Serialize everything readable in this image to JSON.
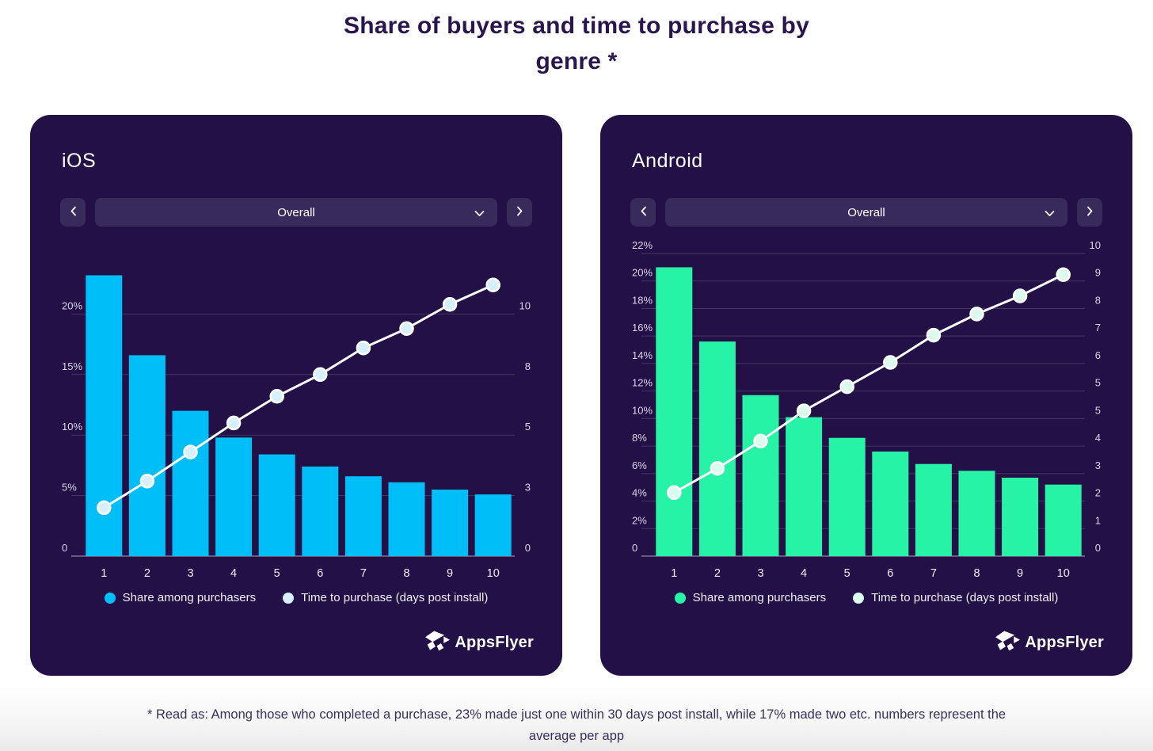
{
  "page": {
    "title_line1": "Share of buyers and time to purchase by",
    "title_line2": "genre *",
    "footer_line1": "* Read as: Among those who completed a purchase, 23% made just one within 30 days post install, while 17% made two etc. numbers represent the",
    "footer_line2": "average per app"
  },
  "colors": {
    "page_background": "#FFFFFF",
    "title_text": "#2A164F",
    "card_background": "#221046",
    "control_background": "#392A5C",
    "ios_bar": "#00BEF7",
    "ios_line_dot": "#D6F0FF",
    "android_bar": "#26F3A6",
    "android_line_dot": "#DCFBEF",
    "line_stroke": "#FFFFFF",
    "tick_text": "#D9D5EA",
    "footer_text": "#39305B"
  },
  "cards": [
    {
      "title": "iOS",
      "prev_icon": "chevron-left-icon",
      "next_icon": "chevron-right-icon",
      "dropdown_value": "Overall",
      "logo_text": "AppsFlyer"
    },
    {
      "title": "Android",
      "prev_icon": "chevron-left-icon",
      "next_icon": "chevron-right-icon",
      "dropdown_value": "Overall",
      "logo_text": "AppsFlyer"
    }
  ],
  "chart_data": [
    {
      "type": "bar+line",
      "platform": "iOS",
      "categories": [
        "1",
        "2",
        "3",
        "4",
        "5",
        "6",
        "7",
        "8",
        "9",
        "10"
      ],
      "series": [
        {
          "name": "Share among purchasers",
          "type": "bar",
          "unit": "%",
          "values": [
            23.2,
            16.6,
            12.0,
            9.8,
            8.4,
            7.4,
            6.6,
            6.1,
            5.5,
            5.1
          ]
        },
        {
          "name": "Time to purchase (days post install)",
          "type": "line",
          "unit": "days",
          "values": [
            2.0,
            3.1,
            4.3,
            5.5,
            6.6,
            7.5,
            8.6,
            9.4,
            10.4,
            11.2
          ]
        }
      ],
      "y_left": {
        "max": 25,
        "ticks": [
          {
            "pct": 20,
            "label": "20%"
          },
          {
            "pct": 15,
            "label": "15%"
          },
          {
            "pct": 10,
            "label": "10%"
          },
          {
            "pct": 5,
            "label": "5%"
          },
          {
            "pct": 0,
            "label": "0"
          }
        ]
      },
      "y_right": {
        "ticks": [
          {
            "pct": 20,
            "label": "10"
          },
          {
            "pct": 15,
            "label": "8"
          },
          {
            "pct": 10,
            "label": "5"
          },
          {
            "pct": 5,
            "label": "3"
          },
          {
            "pct": 0,
            "label": "0"
          }
        ]
      },
      "days_to_pct": 2.0,
      "grid_on": true,
      "legend_position": "bottom-center",
      "bar_color": "#00BEF7",
      "dot_color": "#D6F0FF",
      "line_color": "#FFFFFF"
    },
    {
      "type": "bar+line",
      "platform": "Android",
      "categories": [
        "1",
        "2",
        "3",
        "4",
        "5",
        "6",
        "7",
        "8",
        "9",
        "10"
      ],
      "series": [
        {
          "name": "Share among purchasers",
          "type": "bar",
          "unit": "%",
          "values": [
            21.0,
            15.6,
            11.7,
            10.1,
            8.6,
            7.6,
            6.7,
            6.2,
            5.7,
            5.2
          ]
        },
        {
          "name": "Time to purchase (days post install)",
          "type": "line",
          "unit": "days",
          "values": [
            2.1,
            2.9,
            3.8,
            4.8,
            5.6,
            6.4,
            7.3,
            8.0,
            8.6,
            9.3
          ]
        }
      ],
      "y_left": {
        "max": 22,
        "ticks": [
          {
            "pct": 22,
            "label": "22%"
          },
          {
            "pct": 20,
            "label": "20%"
          },
          {
            "pct": 18,
            "label": "18%"
          },
          {
            "pct": 16,
            "label": "16%"
          },
          {
            "pct": 14,
            "label": "14%"
          },
          {
            "pct": 12,
            "label": "12%"
          },
          {
            "pct": 10,
            "label": "10%"
          },
          {
            "pct": 8,
            "label": "8%"
          },
          {
            "pct": 6,
            "label": "6%"
          },
          {
            "pct": 4,
            "label": "4%"
          },
          {
            "pct": 2,
            "label": "2%"
          },
          {
            "pct": 0,
            "label": "0"
          }
        ]
      },
      "y_right": {
        "ticks": [
          {
            "pct": 22,
            "label": "10"
          },
          {
            "pct": 20,
            "label": "9"
          },
          {
            "pct": 18,
            "label": "8"
          },
          {
            "pct": 16,
            "label": "7"
          },
          {
            "pct": 14,
            "label": "6"
          },
          {
            "pct": 12,
            "label": "5"
          },
          {
            "pct": 10,
            "label": "5"
          },
          {
            "pct": 8,
            "label": "4"
          },
          {
            "pct": 6,
            "label": "3"
          },
          {
            "pct": 4,
            "label": "2"
          },
          {
            "pct": 2,
            "label": "1"
          },
          {
            "pct": 0,
            "label": "0"
          }
        ]
      },
      "days_to_pct": 2.2,
      "grid_on": true,
      "legend_position": "bottom-center",
      "bar_color": "#26F3A6",
      "dot_color": "#DCFBEF",
      "line_color": "#FFFFFF"
    }
  ]
}
